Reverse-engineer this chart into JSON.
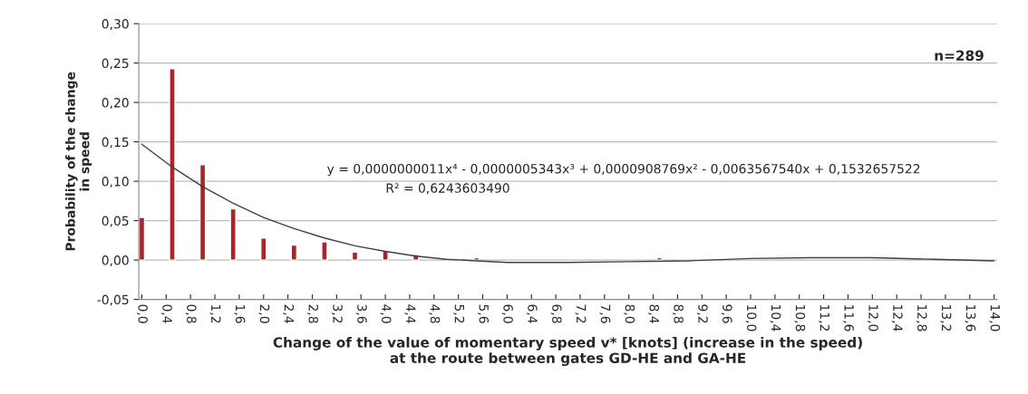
{
  "chart_data": {
    "type": "bar",
    "xlabel": "Change of the value of momentary speed v* [knots] (increase in the speed)\nat the route between gates GD-HE and GA-HE",
    "ylabel": "Probability of the change\nin speed",
    "x": [
      0,
      0.5,
      1.0,
      1.5,
      2.0,
      2.5,
      3.0,
      3.5,
      4.0,
      4.5,
      5.5,
      8.5
    ],
    "series": [
      {
        "color": "#a8262a",
        "values": [
          0.054,
          0.243,
          0.121,
          0.065,
          0.028,
          0.019,
          0.023,
          0.01,
          0.012,
          0.007,
          0.003,
          0.003
        ]
      },
      {
        "type": "line",
        "color": "#404040",
        "x": [
          0,
          0.5,
          1.0,
          1.5,
          2.0,
          2.5,
          3.0,
          3.5,
          4.0,
          4.5,
          5.0,
          5.5,
          6.0,
          7.0,
          8.0,
          9.0,
          10.0,
          11.0,
          12.0,
          13.0,
          14.0
        ],
        "values": [
          0.147,
          0.118,
          0.093,
          0.072,
          0.054,
          0.04,
          0.028,
          0.018,
          0.011,
          0.005,
          0.001,
          -0.001,
          -0.003,
          -0.003,
          -0.002,
          -0.001,
          0.002,
          0.003,
          0.003,
          0.001,
          -0.001
        ]
      }
    ],
    "xlim": [
      -0.05,
      14.05
    ],
    "xticks": [
      {
        "value": 0,
        "label": "0,0"
      },
      {
        "value": 0.4,
        "label": "0,4"
      },
      {
        "value": 0.8,
        "label": "0,8"
      },
      {
        "value": 1.2,
        "label": "1,2"
      },
      {
        "value": 1.6,
        "label": "1,6"
      },
      {
        "value": 2.0,
        "label": "2,0"
      },
      {
        "value": 2.4,
        "label": "2,4"
      },
      {
        "value": 2.8,
        "label": "2,8"
      },
      {
        "value": 3.2,
        "label": "3,2"
      },
      {
        "value": 3.6,
        "label": "3,6"
      },
      {
        "value": 4.0,
        "label": "4,0"
      },
      {
        "value": 4.4,
        "label": "4,4"
      },
      {
        "value": 4.8,
        "label": "4,8"
      },
      {
        "value": 5.2,
        "label": "5,2"
      },
      {
        "value": 5.6,
        "label": "5,6"
      },
      {
        "value": 6.0,
        "label": "6,0"
      },
      {
        "value": 6.4,
        "label": "6,4"
      },
      {
        "value": 6.8,
        "label": "6,8"
      },
      {
        "value": 7.2,
        "label": "7,2"
      },
      {
        "value": 7.6,
        "label": "7,6"
      },
      {
        "value": 8.0,
        "label": "8,0"
      },
      {
        "value": 8.4,
        "label": "8,4"
      },
      {
        "value": 8.8,
        "label": "8,8"
      },
      {
        "value": 9.2,
        "label": "9,2"
      },
      {
        "value": 9.6,
        "label": "9,6"
      },
      {
        "value": 10.0,
        "label": "10,0"
      },
      {
        "value": 10.4,
        "label": "10,4"
      },
      {
        "value": 10.8,
        "label": "10,8"
      },
      {
        "value": 11.2,
        "label": "11,2"
      },
      {
        "value": 11.6,
        "label": "11,6"
      },
      {
        "value": 12.0,
        "label": "12,0"
      },
      {
        "value": 12.4,
        "label": "12,4"
      },
      {
        "value": 12.8,
        "label": "12,8"
      },
      {
        "value": 13.2,
        "label": "13,2"
      },
      {
        "value": 13.6,
        "label": "13,6"
      },
      {
        "value": 14.0,
        "label": "14,0"
      }
    ],
    "ylim": [
      -0.05,
      0.3
    ],
    "yticks": [
      {
        "value": -0.05,
        "label": "-0,05"
      },
      {
        "value": 0,
        "label": "0,00"
      },
      {
        "value": 0.05,
        "label": "0,05"
      },
      {
        "value": 0.1,
        "label": "0,10"
      },
      {
        "value": 0.15,
        "label": "0,15"
      },
      {
        "value": 0.2,
        "label": "0,20"
      },
      {
        "value": 0.25,
        "label": "0,25"
      },
      {
        "value": 0.3,
        "label": "0,30"
      }
    ],
    "grid": "y",
    "annotations": [
      "n=289",
      "y = 0,0000000011x⁴ - 0,0000005343x³ + 0,0000908769x² - 0,0063567540x + 0,1532657522",
      "R² = 0,6243603490"
    ]
  }
}
